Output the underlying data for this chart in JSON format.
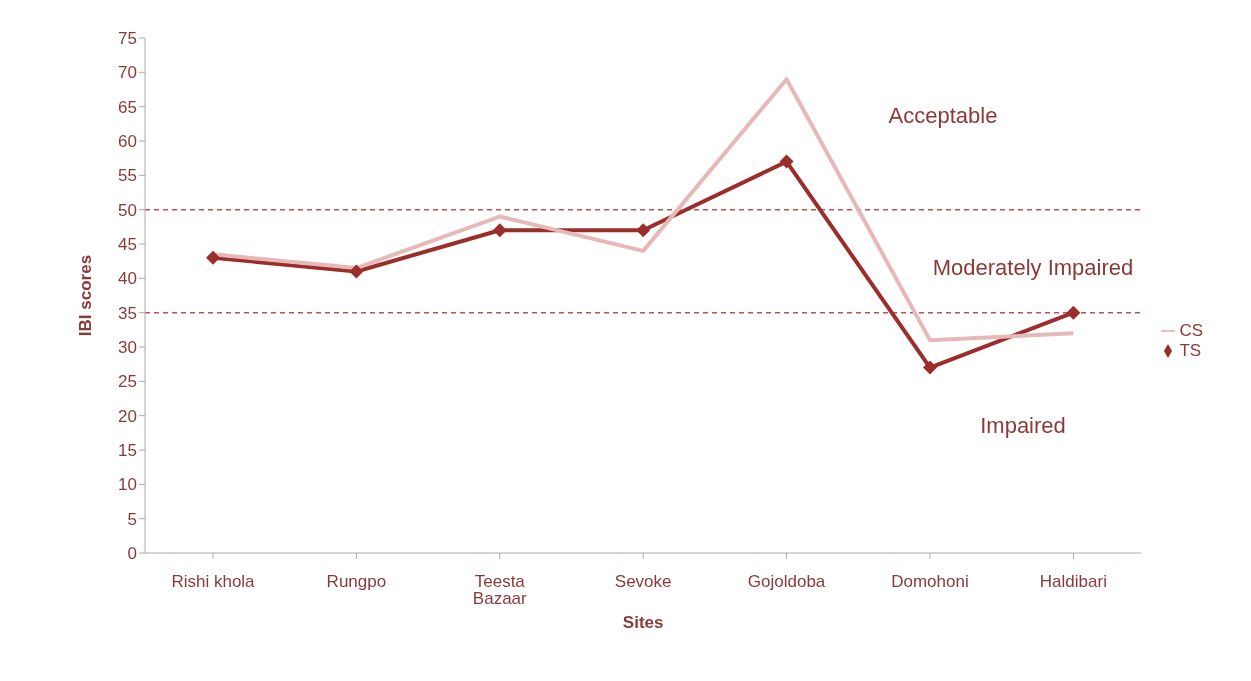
{
  "chart_data": {
    "type": "line",
    "xlabel": "Sites",
    "ylabel": "IBI scores",
    "categories": [
      "Rishi khola",
      "Rungpo",
      "Teesta Bazaar",
      "Sevoke",
      "Gojoldoba",
      "Domohoni",
      "Haldibari"
    ],
    "series": [
      {
        "name": "TS",
        "color": "#9b2d2a",
        "marker": "diamond",
        "values": [
          43,
          41,
          47,
          47,
          57,
          27,
          35
        ]
      },
      {
        "name": "CS",
        "color": "#e6b9b8",
        "marker": "none",
        "values": [
          43.5,
          41.5,
          49,
          44,
          69,
          31,
          32
        ]
      }
    ],
    "ylim": [
      0,
      75
    ],
    "yticks": [
      0,
      5,
      10,
      15,
      20,
      25,
      30,
      35,
      40,
      45,
      50,
      55,
      60,
      65,
      70,
      75
    ],
    "ref_lines": [
      {
        "axis": "y",
        "value": 50,
        "color": "#c0504d",
        "line_style": "dashed"
      },
      {
        "axis": "y",
        "value": 35,
        "color": "#c0504d",
        "line_style": "dashed"
      }
    ],
    "annotations": [
      "Acceptable",
      "Moderately Impaired",
      "Impaired"
    ],
    "grid": false,
    "legend": "right",
    "line_style": "solid"
  }
}
